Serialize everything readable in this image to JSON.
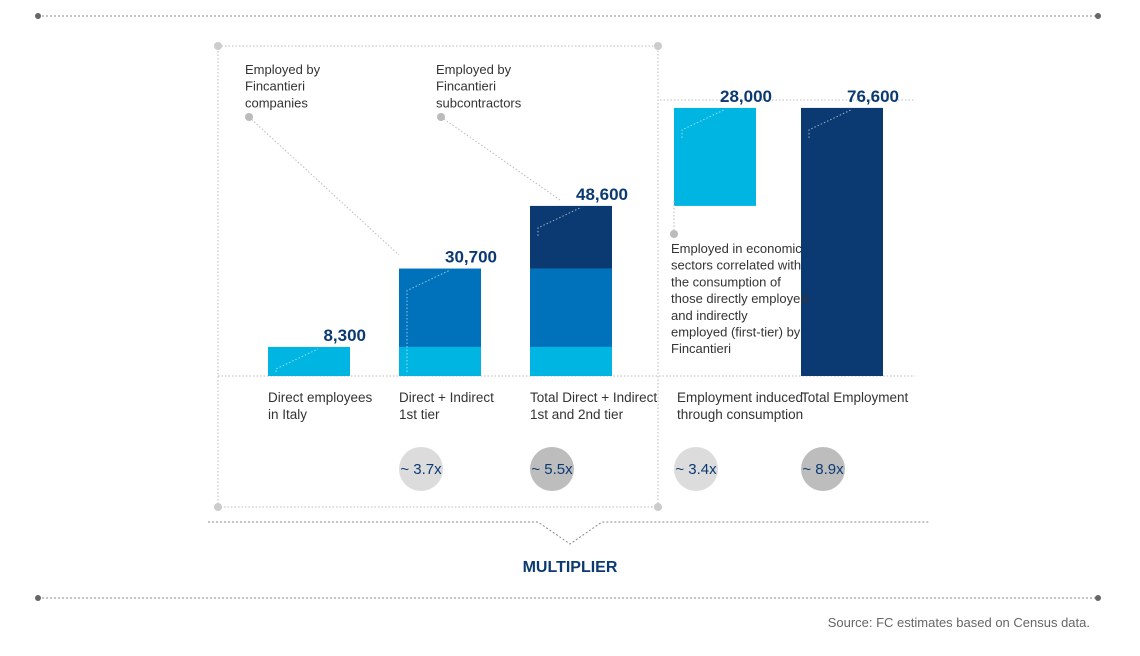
{
  "chart_data": {
    "type": "waterfall",
    "categories": [
      [
        "Direct employees",
        "in Italy"
      ],
      [
        "Direct + Indirect",
        "1st tier"
      ],
      [
        "Total Direct + Indirect",
        "1st and 2nd tier"
      ],
      [
        "Employment induced",
        "through consumption"
      ],
      [
        "Total Employment"
      ]
    ],
    "values": [
      8300,
      30700,
      48600,
      28000,
      76600
    ],
    "value_labels": [
      "8,300",
      "30,700",
      "48,600",
      "28,000",
      "76,600"
    ],
    "floating": [
      false,
      false,
      false,
      true,
      false
    ],
    "colors": [
      "#00b5e2",
      "#0072bb",
      "#0b3a72",
      "#00b5e2",
      "#0b3a72"
    ],
    "ylim": [
      0,
      80000
    ],
    "multipliers": [
      null,
      "~ 3.7x",
      "~ 5.5x",
      "~ 3.4x",
      "~ 8.9x"
    ],
    "annotations": [
      [
        "Employed by",
        "Fincantieri",
        "companies"
      ],
      [
        "Employed by",
        "Fincantieri",
        "subcontractors"
      ],
      [
        "Employed in economic",
        "sectors correlated with",
        "the consumption of",
        "those directly employed",
        "and indirectly",
        "employed (first-tier) by",
        "Fincantieri"
      ]
    ],
    "multiplier_title": "MULTIPLIER",
    "source": "Source: FC estimates based on Census data."
  }
}
